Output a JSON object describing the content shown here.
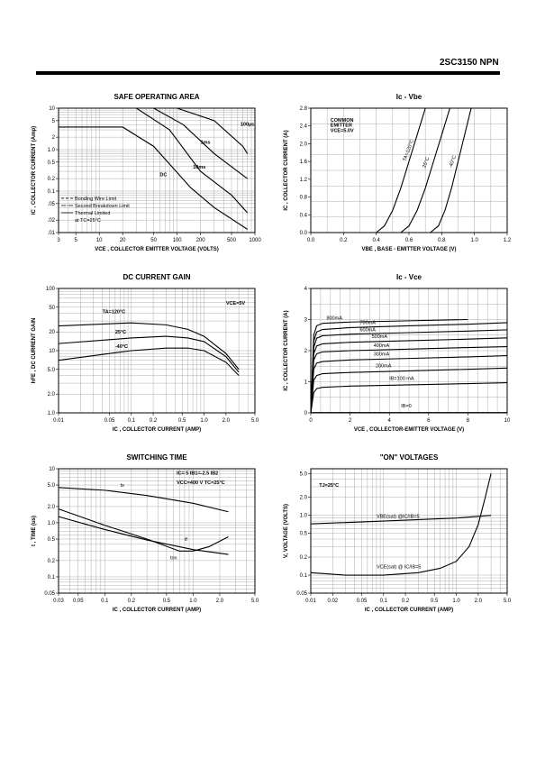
{
  "header": {
    "part_label": "2SC3150 NPN"
  },
  "chart_data": [
    {
      "id": "soa",
      "type": "line",
      "title": "SAFE OPERATING AREA",
      "xlabel": "VCE , COLLECTOR EMITTER VOLTAGE (VOLTS)",
      "ylabel": "IC , COLLECTOR CURRENT (Amp)",
      "xscale": "log",
      "yscale": "log",
      "xlim": [
        3,
        1000
      ],
      "ylim": [
        0.01,
        10
      ],
      "xticks": [
        3,
        5,
        10,
        20,
        50,
        100,
        200,
        500,
        1000
      ],
      "xticklabels": [
        "3",
        "5",
        "10",
        "20",
        "50",
        "100",
        "200",
        "500",
        "1000"
      ],
      "yticks": [
        0.01,
        0.02,
        0.05,
        0.1,
        0.2,
        0.5,
        1,
        2,
        5,
        10
      ],
      "yticklabels": [
        ".01",
        ".02",
        ".05",
        "0.1",
        "0.2",
        "0.5",
        "1.0",
        "2",
        "5",
        "10"
      ],
      "legend": [
        "Bonding Wire Limit",
        "Second Breakdown Limit",
        "Thermal Limited",
        "at TC=25°C"
      ],
      "series": [
        {
          "label": "DC",
          "x": [
            3,
            20,
            50,
            150,
            300,
            800
          ],
          "y": [
            3.5,
            3.5,
            1.2,
            0.12,
            0.04,
            0.012
          ]
        },
        {
          "label": "10ms",
          "x": [
            3,
            30,
            80,
            200,
            500,
            800
          ],
          "y": [
            10,
            10,
            3,
            0.3,
            0.08,
            0.03
          ]
        },
        {
          "label": "1ms",
          "x": [
            3,
            50,
            120,
            300,
            800
          ],
          "y": [
            10,
            10,
            4,
            0.8,
            0.2
          ]
        },
        {
          "label": "100µs",
          "x": [
            3,
            100,
            300,
            700,
            800
          ],
          "y": [
            10,
            10,
            5,
            1.2,
            0.8
          ]
        }
      ],
      "annotations": [
        {
          "text": "100µs",
          "x": 650,
          "y": 3.8
        },
        {
          "text": "1ms",
          "x": 200,
          "y": 1.4
        },
        {
          "text": "10ms",
          "x": 160,
          "y": 0.35
        },
        {
          "text": "DC",
          "x": 60,
          "y": 0.23
        }
      ]
    },
    {
      "id": "ic_vbe",
      "type": "line",
      "title": "Ic - Vbe",
      "xlabel": "VBE , BASE - EMITTER VOLTAGE (V)",
      "ylabel": "IC , COLLECTOR CURRENT (A)",
      "xlim": [
        0,
        1.2
      ],
      "ylim": [
        0,
        2.8
      ],
      "xticks": [
        0,
        0.2,
        0.4,
        0.6,
        0.8,
        1.0,
        1.2
      ],
      "xticklabels": [
        "0.0",
        "0.2",
        "0.4",
        "0.6",
        "0.8",
        "1.0",
        "1.2"
      ],
      "yticks": [
        0,
        0.4,
        0.8,
        1.2,
        1.6,
        2.0,
        2.4,
        2.8
      ],
      "yticklabels": [
        "0.0",
        "0.4",
        "0.8",
        "1.2",
        "1.6",
        "2.0",
        "2.4",
        "2.8"
      ],
      "annotations": [
        {
          "text": "COMMON",
          "x": 0.12,
          "y": 2.5
        },
        {
          "text": "EMITTER",
          "x": 0.12,
          "y": 2.38
        },
        {
          "text": "VCE=5.0V",
          "x": 0.12,
          "y": 2.26
        }
      ],
      "series": [
        {
          "label": "TA=120°C",
          "x": [
            0.4,
            0.45,
            0.5,
            0.55,
            0.6,
            0.65,
            0.7
          ],
          "y": [
            0,
            0.15,
            0.5,
            1.0,
            1.6,
            2.2,
            2.8
          ]
        },
        {
          "label": "25°C",
          "x": [
            0.55,
            0.6,
            0.65,
            0.7,
            0.75,
            0.8,
            0.85
          ],
          "y": [
            0,
            0.15,
            0.5,
            1.0,
            1.6,
            2.2,
            2.8
          ]
        },
        {
          "label": "-40°C",
          "x": [
            0.73,
            0.78,
            0.82,
            0.86,
            0.9,
            0.94,
            0.98
          ],
          "y": [
            0,
            0.15,
            0.5,
            1.0,
            1.6,
            2.2,
            2.8
          ]
        }
      ]
    },
    {
      "id": "dc_gain",
      "type": "line",
      "title": "DC CURRENT GAIN",
      "xlabel": "IC , COLLECTOR CURRENT (AMP)",
      "ylabel": "hFE , DC CURRENT GAIN",
      "xscale": "log",
      "yscale": "log",
      "xlim": [
        0.01,
        5
      ],
      "ylim": [
        1,
        100
      ],
      "xticks": [
        0.01,
        0.05,
        0.1,
        0.2,
        0.5,
        1,
        2,
        5
      ],
      "xticklabels": [
        "0.01",
        "0.05",
        "0.1",
        "0.2",
        "0.5",
        "1.0",
        "2.0",
        "5.0"
      ],
      "yticks": [
        1,
        2,
        5,
        10,
        20,
        50,
        100
      ],
      "yticklabels": [
        "1.0",
        "2.0",
        "5.0",
        "10",
        "20",
        "50",
        "100"
      ],
      "annotations": [
        {
          "text": "VCE=5V",
          "x": 2.0,
          "y": 55
        },
        {
          "text": "TA=120°C",
          "x": 0.04,
          "y": 40
        },
        {
          "text": "25°C",
          "x": 0.06,
          "y": 19
        },
        {
          "text": "-40°C",
          "x": 0.06,
          "y": 11
        }
      ],
      "series": [
        {
          "label": "TA=120°C",
          "x": [
            0.01,
            0.05,
            0.1,
            0.3,
            0.6,
            1,
            2,
            3
          ],
          "y": [
            25,
            27,
            28,
            26,
            22,
            17,
            9,
            5
          ]
        },
        {
          "label": "25°C",
          "x": [
            0.01,
            0.05,
            0.1,
            0.3,
            0.6,
            1,
            2,
            3
          ],
          "y": [
            13,
            15,
            16,
            17,
            16,
            14,
            8,
            4.5
          ]
        },
        {
          "label": "-40°C",
          "x": [
            0.01,
            0.05,
            0.1,
            0.3,
            0.6,
            1,
            2,
            3
          ],
          "y": [
            7,
            9,
            10,
            11,
            11,
            10,
            6.5,
            4
          ]
        }
      ]
    },
    {
      "id": "ic_vce",
      "type": "line",
      "title": "Ic - Vce",
      "xlabel": "VCE , COLLECTOR-EMITTER VOLTAGE (V)",
      "ylabel": "IC , COLLECTOR CURRENT (A)",
      "xlim": [
        0,
        10
      ],
      "ylim": [
        0,
        4
      ],
      "xticks": [
        0,
        2,
        4,
        6,
        8,
        10
      ],
      "xticklabels": [
        "0",
        "2",
        "4",
        "6",
        "8",
        "10"
      ],
      "yticks": [
        0,
        1,
        2,
        3,
        4
      ],
      "yticklabels": [
        "0",
        "1",
        "2",
        "3",
        "4"
      ],
      "series": [
        {
          "label": "800mA",
          "x": [
            0,
            0.15,
            0.3,
            0.6,
            2,
            5,
            8
          ],
          "y": [
            0,
            2.5,
            2.8,
            2.88,
            2.92,
            2.96,
            3.0
          ]
        },
        {
          "label": "700mA",
          "x": [
            0,
            0.15,
            0.3,
            0.6,
            2,
            5,
            8,
            10
          ],
          "y": [
            0,
            2.3,
            2.6,
            2.68,
            2.74,
            2.8,
            2.85,
            2.9
          ]
        },
        {
          "label": "600mA",
          "x": [
            0,
            0.15,
            0.3,
            0.6,
            2,
            5,
            8,
            10
          ],
          "y": [
            0,
            2.1,
            2.4,
            2.48,
            2.53,
            2.58,
            2.63,
            2.67
          ]
        },
        {
          "label": "500mA",
          "x": [
            0,
            0.15,
            0.3,
            0.6,
            2,
            5,
            8,
            10
          ],
          "y": [
            0,
            1.9,
            2.15,
            2.22,
            2.27,
            2.32,
            2.37,
            2.41
          ]
        },
        {
          "label": "400mA",
          "x": [
            0,
            0.15,
            0.3,
            0.6,
            2,
            5,
            8,
            10
          ],
          "y": [
            0,
            1.7,
            1.9,
            1.96,
            2.0,
            2.05,
            2.1,
            2.13
          ]
        },
        {
          "label": "300mA",
          "x": [
            0,
            0.15,
            0.3,
            0.6,
            2,
            5,
            8,
            10
          ],
          "y": [
            0,
            1.4,
            1.6,
            1.65,
            1.7,
            1.75,
            1.8,
            1.84
          ]
        },
        {
          "label": "200mA",
          "x": [
            0,
            0.15,
            0.3,
            0.6,
            2,
            5,
            8,
            10
          ],
          "y": [
            0,
            1.05,
            1.2,
            1.26,
            1.3,
            1.35,
            1.4,
            1.44
          ]
        },
        {
          "label": "IB=100 mA",
          "x": [
            0,
            0.15,
            0.3,
            0.6,
            2,
            5,
            8,
            10
          ],
          "y": [
            0,
            0.65,
            0.78,
            0.82,
            0.86,
            0.9,
            0.94,
            0.97
          ]
        },
        {
          "label": "IB=0",
          "x": [
            0,
            10
          ],
          "y": [
            0.01,
            0.01
          ]
        }
      ]
    },
    {
      "id": "switching",
      "type": "line",
      "title": "SWITCHING TIME",
      "xlabel": "IC , COLLECTOR CURRENT (AMP)",
      "ylabel": "t , TIME (us)",
      "xscale": "log",
      "yscale": "log",
      "xlim": [
        0.03,
        5
      ],
      "ylim": [
        0.05,
        10
      ],
      "xticks": [
        0.03,
        0.05,
        0.1,
        0.2,
        0.5,
        1,
        2,
        5
      ],
      "xticklabels": [
        "0.03",
        "0.05",
        "0.1",
        "0.2",
        "0.5",
        "1.0",
        "2.0",
        "5.0"
      ],
      "yticks": [
        0.05,
        0.1,
        0.2,
        0.5,
        1,
        2,
        5,
        10
      ],
      "yticklabels": [
        "0.05",
        "0.1",
        "0.2",
        "0.5",
        "1.0",
        "2.0",
        "5.0",
        "10"
      ],
      "annotations": [
        {
          "text": "IC= 5 IB1=-2.5 IB2",
          "x": 0.65,
          "y": 7.8
        },
        {
          "text": "VCC=400 V TC=25°C",
          "x": 0.65,
          "y": 5.2
        }
      ],
      "series": [
        {
          "label": "ts",
          "x": [
            0.03,
            0.1,
            0.3,
            1,
            2.5
          ],
          "y": [
            4.5,
            4.0,
            3.2,
            2.3,
            1.6
          ]
        },
        {
          "label": "tf",
          "x": [
            0.03,
            0.1,
            0.3,
            0.7,
            1,
            1.5,
            2.5
          ],
          "y": [
            1.8,
            0.9,
            0.5,
            0.3,
            0.3,
            0.36,
            0.55
          ]
        },
        {
          "label": "ton",
          "x": [
            0.03,
            0.1,
            0.3,
            1,
            2.5
          ],
          "y": [
            1.3,
            0.75,
            0.48,
            0.32,
            0.26
          ]
        }
      ]
    },
    {
      "id": "on_voltages",
      "type": "line",
      "title": "\"ON\" VOLTAGES",
      "xlabel": "IC , COLLECTOR CURRENT (AMP)",
      "ylabel": "V, VOLTAGE (VOLTS)",
      "xscale": "log",
      "yscale": "log",
      "xlim": [
        0.01,
        5
      ],
      "ylim": [
        0.05,
        6
      ],
      "xticks": [
        0.01,
        0.02,
        0.05,
        0.1,
        0.2,
        0.5,
        1,
        2,
        5
      ],
      "xticklabels": [
        "0.01",
        "0.02",
        "0.05",
        "0.1",
        "0.2",
        "0.5",
        "1.0",
        "2.0",
        "5.0"
      ],
      "yticks": [
        0.05,
        0.1,
        0.2,
        0.5,
        1,
        2,
        5
      ],
      "yticklabels": [
        "0.05",
        "0.1",
        "0.2",
        "0.5",
        "1.0",
        "2.0",
        "5.0"
      ],
      "annotations": [
        {
          "text": "TJ=25°C",
          "x": 0.013,
          "y": 3.0
        }
      ],
      "series": [
        {
          "label": "VBE(sat) @IC/IB=5",
          "x": [
            0.01,
            0.1,
            1,
            3
          ],
          "y": [
            0.72,
            0.8,
            0.9,
            1.0
          ]
        },
        {
          "label": "VCE(sat) @ IC/IB=5",
          "x": [
            0.01,
            0.03,
            0.1,
            0.3,
            0.6,
            1,
            1.5,
            2,
            2.5,
            3
          ],
          "y": [
            0.11,
            0.1,
            0.1,
            0.11,
            0.13,
            0.17,
            0.3,
            0.7,
            2.0,
            5.0
          ]
        }
      ]
    }
  ]
}
